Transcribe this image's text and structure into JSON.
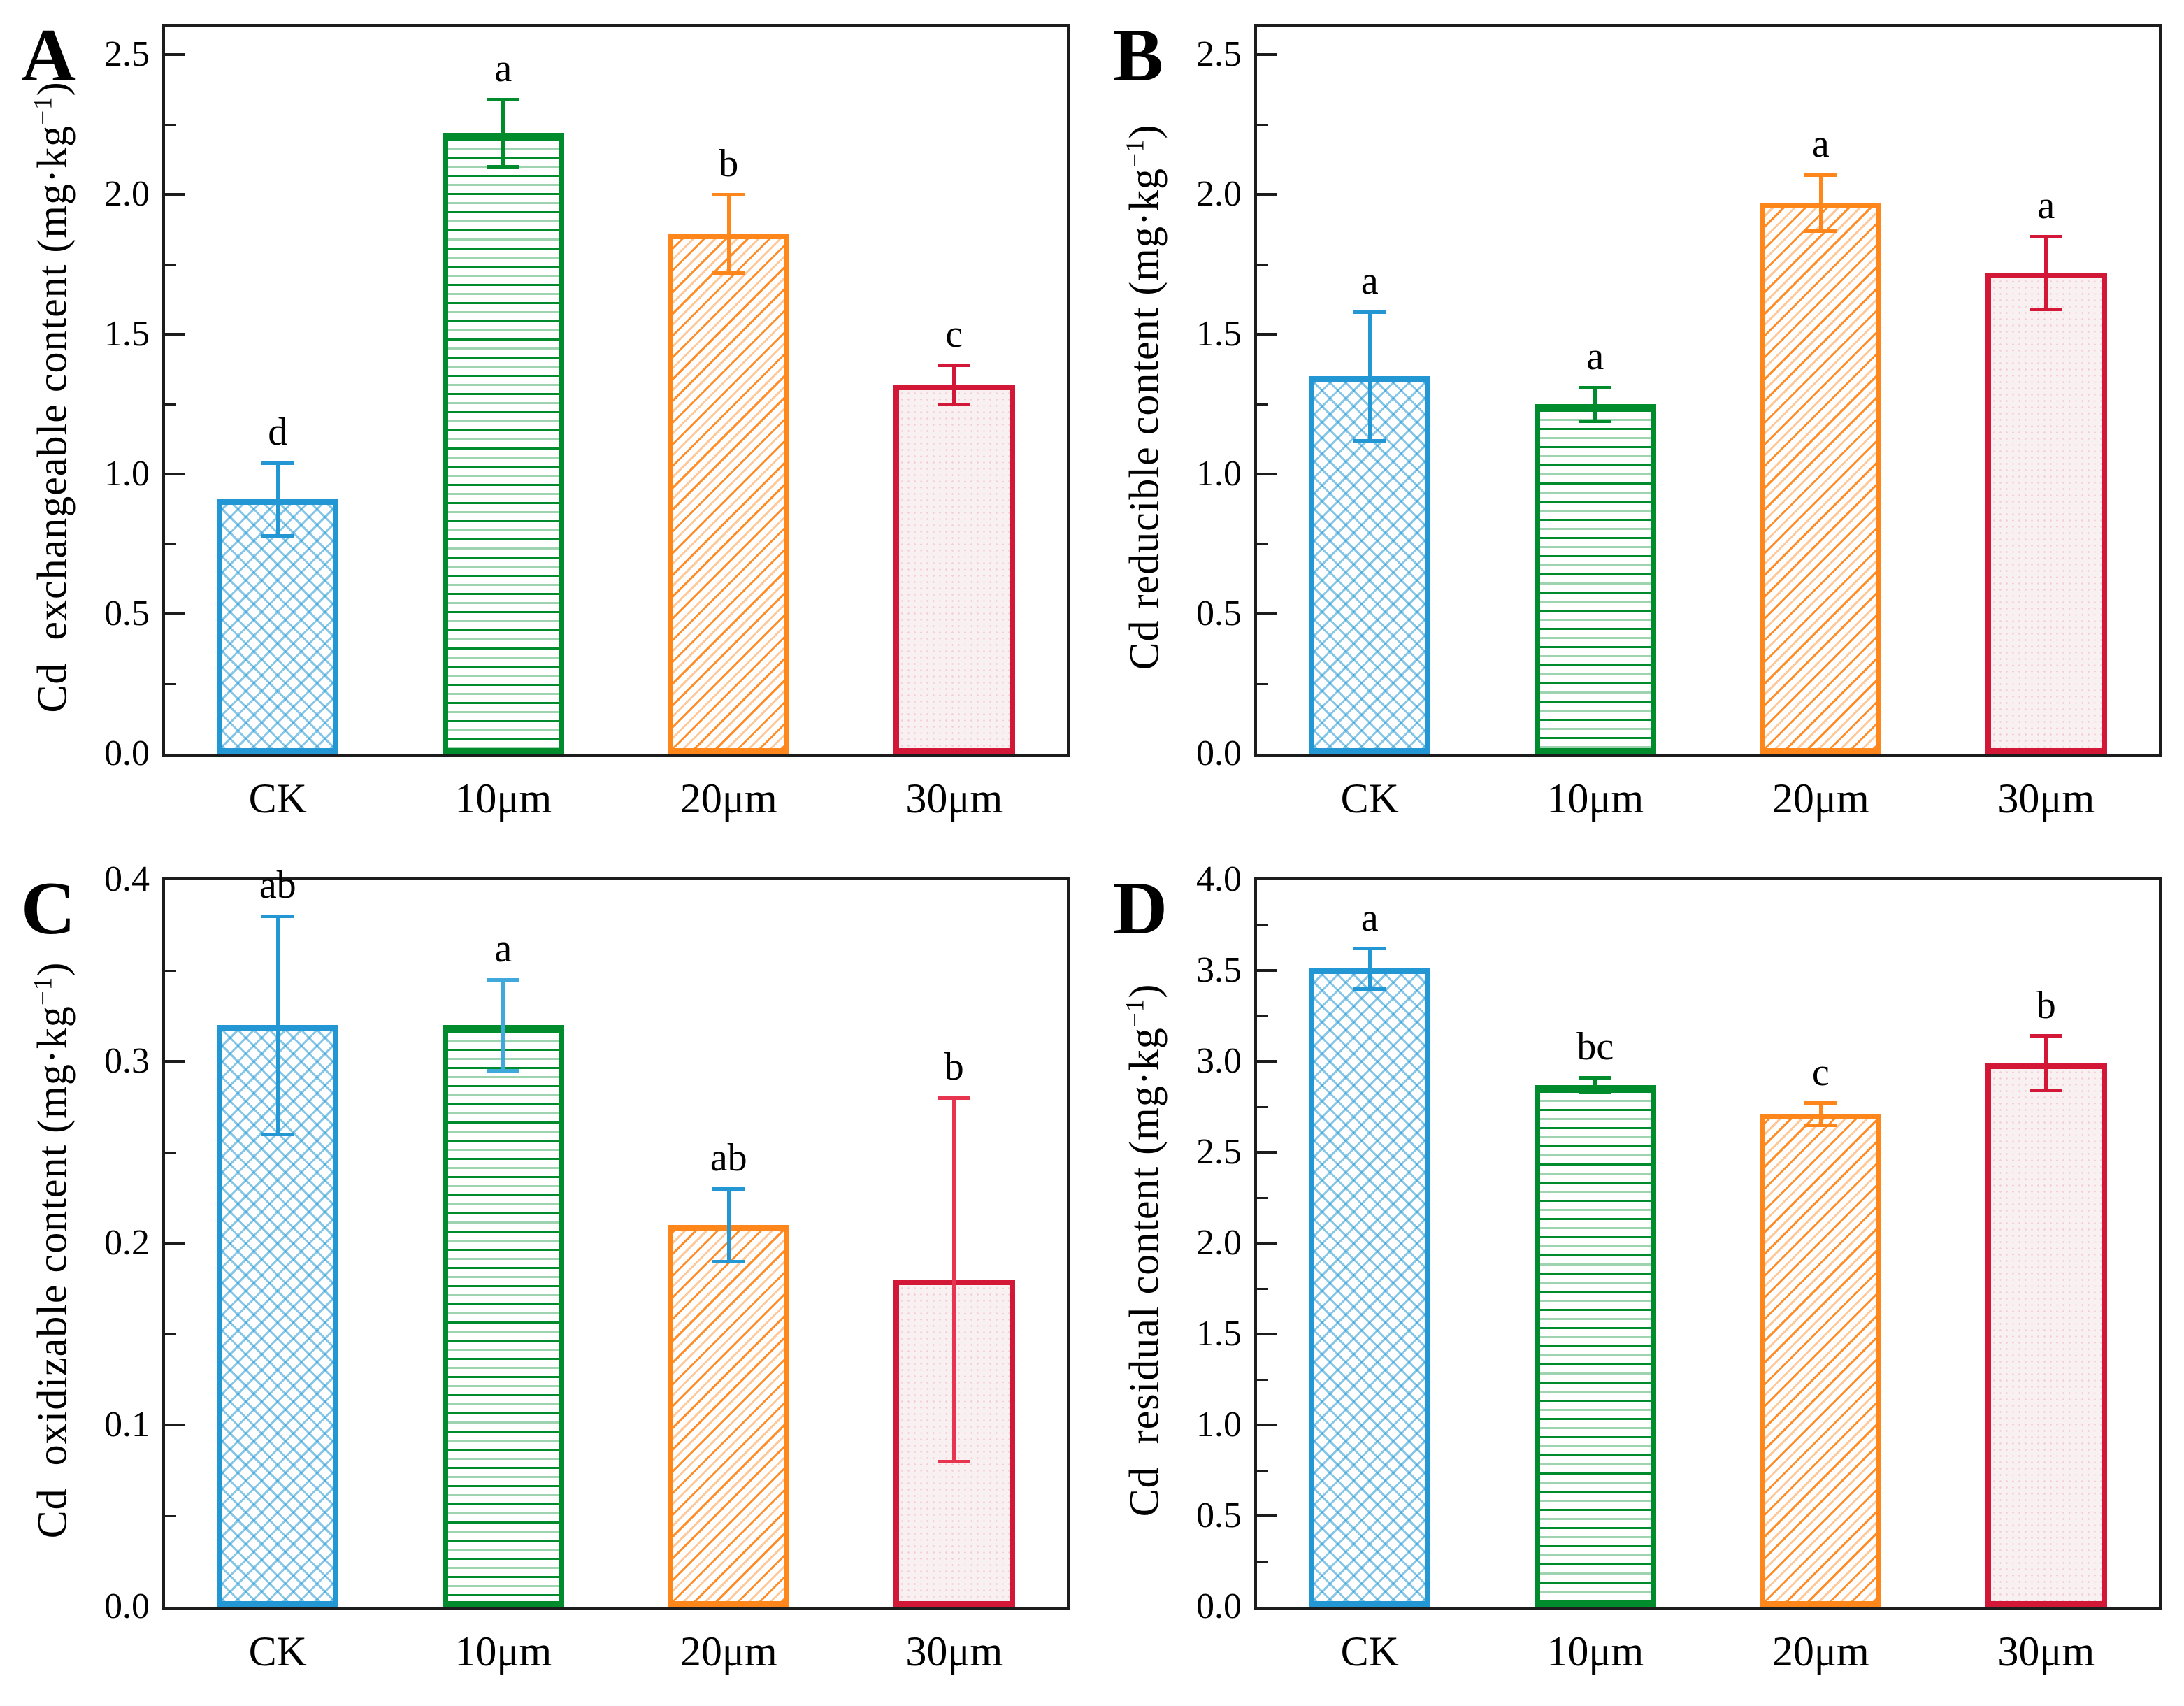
{
  "page": {
    "background": "#ffffff"
  },
  "colors": {
    "axis": "#1c1c1c",
    "blue": "#2397D3",
    "green": "#008B2D",
    "orange": "#FF861B",
    "red": "#D21737",
    "red_fill": "#F9F0F2",
    "light_blue_err": "#3FA9DC",
    "bright_red_err": "#E8354F"
  },
  "chart_data": [
    {
      "type": "bar",
      "panel": "A",
      "ylabel": "Cd  exchangeable content (mg·kg−1)",
      "ylabel_prefix": "Cd  exchangeable content (mg·kg",
      "ylabel_sup": "−1",
      "ylabel_suffix": ")",
      "categories": [
        "CK",
        "10μm",
        "20μm",
        "30μm"
      ],
      "values": [
        0.91,
        2.22,
        1.86,
        1.32
      ],
      "errors": [
        0.13,
        0.12,
        0.14,
        0.07
      ],
      "sig_letters": [
        "d",
        "a",
        "b",
        "c"
      ],
      "bar_styles": [
        "blue",
        "green",
        "orange",
        "red"
      ],
      "err_colors": [
        "#2397D3",
        "#008B2D",
        "#FF861B",
        "#D21737"
      ],
      "ylim": [
        0,
        2.6
      ],
      "tick_values": [
        0.0,
        0.5,
        1.0,
        1.5,
        2.0,
        2.5
      ],
      "tick_labels": [
        "0.0",
        "0.5",
        "1.0",
        "1.5",
        "2.0",
        "2.5"
      ],
      "minor_step": 0.25,
      "grid": false,
      "legend": "none"
    },
    {
      "type": "bar",
      "panel": "B",
      "ylabel": "Cd reducible content (mg·kg−1)",
      "ylabel_prefix": "Cd reducible content (mg·kg",
      "ylabel_sup": "−1",
      "ylabel_suffix": ")",
      "categories": [
        "CK",
        "10μm",
        "20μm",
        "30μm"
      ],
      "values": [
        1.35,
        1.25,
        1.97,
        1.72
      ],
      "errors": [
        0.23,
        0.06,
        0.1,
        0.13
      ],
      "sig_letters": [
        "a",
        "a",
        "a",
        "a"
      ],
      "bar_styles": [
        "blue",
        "green",
        "orange",
        "red"
      ],
      "err_colors": [
        "#2397D3",
        "#008B2D",
        "#FF861B",
        "#D21737"
      ],
      "ylim": [
        0,
        2.6
      ],
      "tick_values": [
        0.0,
        0.5,
        1.0,
        1.5,
        2.0,
        2.5
      ],
      "tick_labels": [
        "0.0",
        "0.5",
        "1.0",
        "1.5",
        "2.0",
        "2.5"
      ],
      "minor_step": 0.25,
      "grid": false,
      "legend": "none"
    },
    {
      "type": "bar",
      "panel": "C",
      "ylabel": "Cd  oxidizable content (mg·kg−1)",
      "ylabel_prefix": "Cd  oxidizable content (mg·kg",
      "ylabel_sup": "−1",
      "ylabel_suffix": ")",
      "categories": [
        "CK",
        "10μm",
        "20μm",
        "30μm"
      ],
      "values": [
        0.32,
        0.32,
        0.21,
        0.18
      ],
      "errors": [
        0.06,
        0.025,
        0.02,
        0.1
      ],
      "sig_letters": [
        "ab",
        "a",
        "ab",
        "b"
      ],
      "bar_styles": [
        "blue",
        "green",
        "orange",
        "red"
      ],
      "err_colors": [
        "#2397D3",
        "#3FA9DC",
        "#2397D3",
        "#E8354F"
      ],
      "ylim": [
        0,
        0.4
      ],
      "tick_values": [
        0.0,
        0.1,
        0.2,
        0.3,
        0.4
      ],
      "tick_labels": [
        "0.0",
        "0.1",
        "0.2",
        "0.3",
        "0.4"
      ],
      "minor_step": 0.05,
      "grid": false,
      "legend": "none"
    },
    {
      "type": "bar",
      "panel": "D",
      "ylabel": "Cd  residual content (mg·kg−1)",
      "ylabel_prefix": "Cd  residual content (mg·kg",
      "ylabel_sup": "−1",
      "ylabel_suffix": ")",
      "categories": [
        "CK",
        "10μm",
        "20μm",
        "30μm"
      ],
      "values": [
        3.51,
        2.87,
        2.71,
        2.99
      ],
      "errors": [
        0.11,
        0.04,
        0.06,
        0.15
      ],
      "sig_letters": [
        "a",
        "bc",
        "c",
        "b"
      ],
      "bar_styles": [
        "blue",
        "green",
        "orange",
        "red"
      ],
      "err_colors": [
        "#2397D3",
        "#008B2D",
        "#FF861B",
        "#D21737"
      ],
      "ylim": [
        0,
        4.0
      ],
      "tick_values": [
        0.0,
        0.5,
        1.0,
        1.5,
        2.0,
        2.5,
        3.0,
        3.5,
        4.0
      ],
      "tick_labels": [
        "0.0",
        "0.5",
        "1.0",
        "1.5",
        "2.0",
        "2.5",
        "3.0",
        "3.5",
        "4.0"
      ],
      "minor_step": 0.25,
      "grid": false,
      "legend": "none"
    }
  ]
}
